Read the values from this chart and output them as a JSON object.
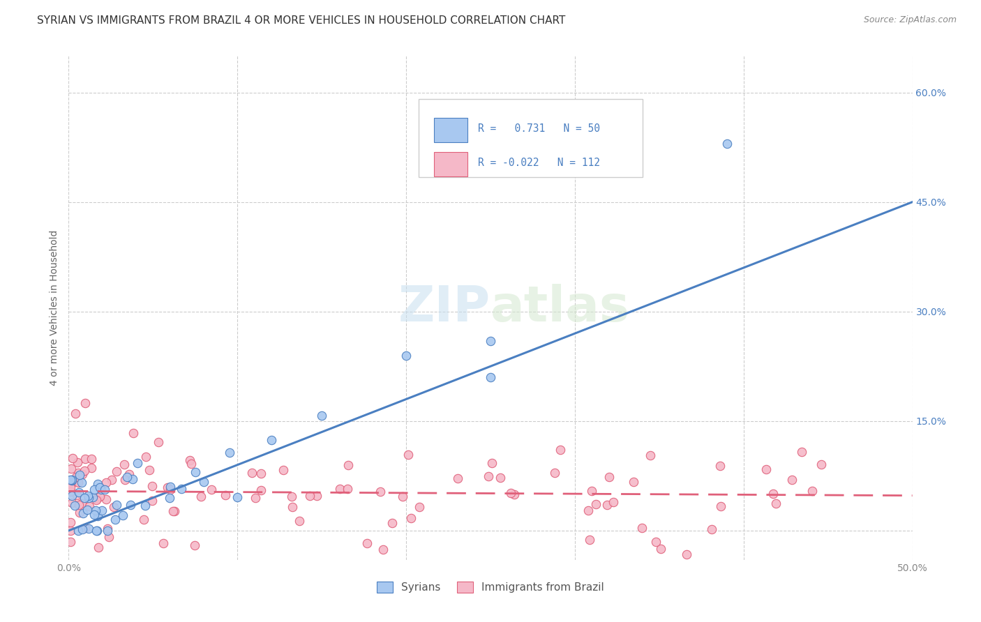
{
  "title": "SYRIAN VS IMMIGRANTS FROM BRAZIL 4 OR MORE VEHICLES IN HOUSEHOLD CORRELATION CHART",
  "source": "Source: ZipAtlas.com",
  "ylabel": "4 or more Vehicles in Household",
  "xlim": [
    0.0,
    0.5
  ],
  "ylim": [
    -0.04,
    0.65
  ],
  "xticks": [
    0.0,
    0.1,
    0.2,
    0.3,
    0.4,
    0.5
  ],
  "xticklabels": [
    "0.0%",
    "",
    "",
    "",
    "",
    "50.0%"
  ],
  "yticks": [
    0.0,
    0.15,
    0.3,
    0.45,
    0.6
  ],
  "yticklabels": [
    "",
    "15.0%",
    "30.0%",
    "45.0%",
    "60.0%"
  ],
  "line_color_syrians": "#4a7fc1",
  "line_color_brazil": "#e0607a",
  "scatter_color_syrians": "#a8c8f0",
  "scatter_color_brazil": "#f5b8c8",
  "background_color": "#ffffff",
  "grid_color": "#cccccc",
  "title_fontsize": 11,
  "axis_label_fontsize": 10,
  "tick_fontsize": 10,
  "watermark_color": "#d8e8f0",
  "sy_line_x0": 0.0,
  "sy_line_y0": 0.0,
  "sy_line_x1": 0.5,
  "sy_line_y1": 0.45,
  "br_line_x0": 0.0,
  "br_line_y0": 0.054,
  "br_line_x1": 0.5,
  "br_line_y1": 0.048
}
